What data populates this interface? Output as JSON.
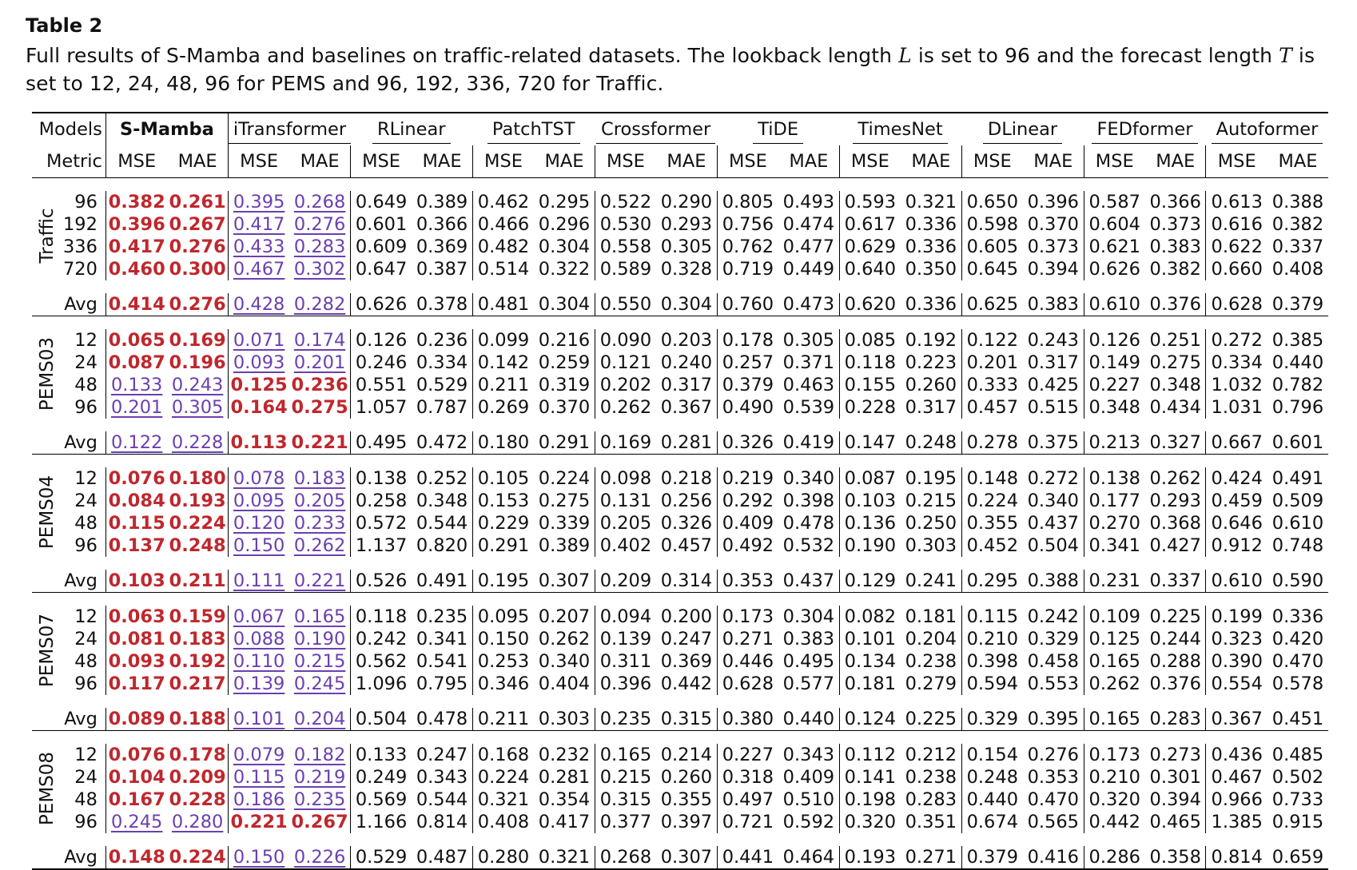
{
  "table_number": "Table 2",
  "caption": {
    "part1": "Full results of S-Mamba and baselines on traffic-related datasets. The lookback length ",
    "var_L": "L",
    "part2": " is set to 96 and the forecast length ",
    "var_T": "T",
    "part3": " is set to 12, 24, 48, 96 for PEMS and 96, 192, 336, 720 for Traffic."
  },
  "header": {
    "models_label": "Models",
    "metric_label": "Metric",
    "mse": "MSE",
    "mae": "MAE",
    "models": [
      "S-Mamba",
      "iTransformer",
      "RLinear",
      "PatchTST",
      "Crossformer",
      "TiDE",
      "TimesNet",
      "DLinear",
      "FEDformer",
      "Autoformer"
    ]
  },
  "avg_label": "Avg",
  "datasets": [
    {
      "name": "Traffic",
      "rows": [
        {
          "len": "96",
          "values": [
            "0.382",
            "0.261",
            "0.395",
            "0.268",
            "0.649",
            "0.389",
            "0.462",
            "0.295",
            "0.522",
            "0.290",
            "0.805",
            "0.493",
            "0.593",
            "0.321",
            "0.650",
            "0.396",
            "0.587",
            "0.366",
            "0.613",
            "0.388"
          ],
          "best": [
            0,
            1
          ],
          "second": [
            2,
            3
          ]
        },
        {
          "len": "192",
          "values": [
            "0.396",
            "0.267",
            "0.417",
            "0.276",
            "0.601",
            "0.366",
            "0.466",
            "0.296",
            "0.530",
            "0.293",
            "0.756",
            "0.474",
            "0.617",
            "0.336",
            "0.598",
            "0.370",
            "0.604",
            "0.373",
            "0.616",
            "0.382"
          ],
          "best": [
            0,
            1
          ],
          "second": [
            2,
            3
          ]
        },
        {
          "len": "336",
          "values": [
            "0.417",
            "0.276",
            "0.433",
            "0.283",
            "0.609",
            "0.369",
            "0.482",
            "0.304",
            "0.558",
            "0.305",
            "0.762",
            "0.477",
            "0.629",
            "0.336",
            "0.605",
            "0.373",
            "0.621",
            "0.383",
            "0.622",
            "0.337"
          ],
          "best": [
            0,
            1
          ],
          "second": [
            2,
            3
          ]
        },
        {
          "len": "720",
          "values": [
            "0.460",
            "0.300",
            "0.467",
            "0.302",
            "0.647",
            "0.387",
            "0.514",
            "0.322",
            "0.589",
            "0.328",
            "0.719",
            "0.449",
            "0.640",
            "0.350",
            "0.645",
            "0.394",
            "0.626",
            "0.382",
            "0.660",
            "0.408"
          ],
          "best": [
            0,
            1
          ],
          "second": [
            2,
            3
          ]
        }
      ],
      "avg": {
        "values": [
          "0.414",
          "0.276",
          "0.428",
          "0.282",
          "0.626",
          "0.378",
          "0.481",
          "0.304",
          "0.550",
          "0.304",
          "0.760",
          "0.473",
          "0.620",
          "0.336",
          "0.625",
          "0.383",
          "0.610",
          "0.376",
          "0.628",
          "0.379"
        ],
        "best": [
          0,
          1
        ],
        "second": [
          2,
          3
        ]
      }
    },
    {
      "name": "PEMS03",
      "rows": [
        {
          "len": "12",
          "values": [
            "0.065",
            "0.169",
            "0.071",
            "0.174",
            "0.126",
            "0.236",
            "0.099",
            "0.216",
            "0.090",
            "0.203",
            "0.178",
            "0.305",
            "0.085",
            "0.192",
            "0.122",
            "0.243",
            "0.126",
            "0.251",
            "0.272",
            "0.385"
          ],
          "best": [
            0,
            1
          ],
          "second": [
            2,
            3
          ]
        },
        {
          "len": "24",
          "values": [
            "0.087",
            "0.196",
            "0.093",
            "0.201",
            "0.246",
            "0.334",
            "0.142",
            "0.259",
            "0.121",
            "0.240",
            "0.257",
            "0.371",
            "0.118",
            "0.223",
            "0.201",
            "0.317",
            "0.149",
            "0.275",
            "0.334",
            "0.440"
          ],
          "best": [
            0,
            1
          ],
          "second": [
            2,
            3
          ]
        },
        {
          "len": "48",
          "values": [
            "0.133",
            "0.243",
            "0.125",
            "0.236",
            "0.551",
            "0.529",
            "0.211",
            "0.319",
            "0.202",
            "0.317",
            "0.379",
            "0.463",
            "0.155",
            "0.260",
            "0.333",
            "0.425",
            "0.227",
            "0.348",
            "1.032",
            "0.782"
          ],
          "best": [
            2,
            3
          ],
          "second": [
            0,
            1
          ]
        },
        {
          "len": "96",
          "values": [
            "0.201",
            "0.305",
            "0.164",
            "0.275",
            "1.057",
            "0.787",
            "0.269",
            "0.370",
            "0.262",
            "0.367",
            "0.490",
            "0.539",
            "0.228",
            "0.317",
            "0.457",
            "0.515",
            "0.348",
            "0.434",
            "1.031",
            "0.796"
          ],
          "best": [
            2,
            3
          ],
          "second": [
            0,
            1
          ]
        }
      ],
      "avg": {
        "values": [
          "0.122",
          "0.228",
          "0.113",
          "0.221",
          "0.495",
          "0.472",
          "0.180",
          "0.291",
          "0.169",
          "0.281",
          "0.326",
          "0.419",
          "0.147",
          "0.248",
          "0.278",
          "0.375",
          "0.213",
          "0.327",
          "0.667",
          "0.601"
        ],
        "best": [
          2,
          3
        ],
        "second": [
          0,
          1
        ]
      }
    },
    {
      "name": "PEMS04",
      "rows": [
        {
          "len": "12",
          "values": [
            "0.076",
            "0.180",
            "0.078",
            "0.183",
            "0.138",
            "0.252",
            "0.105",
            "0.224",
            "0.098",
            "0.218",
            "0.219",
            "0.340",
            "0.087",
            "0.195",
            "0.148",
            "0.272",
            "0.138",
            "0.262",
            "0.424",
            "0.491"
          ],
          "best": [
            0,
            1
          ],
          "second": [
            2,
            3
          ]
        },
        {
          "len": "24",
          "values": [
            "0.084",
            "0.193",
            "0.095",
            "0.205",
            "0.258",
            "0.348",
            "0.153",
            "0.275",
            "0.131",
            "0.256",
            "0.292",
            "0.398",
            "0.103",
            "0.215",
            "0.224",
            "0.340",
            "0.177",
            "0.293",
            "0.459",
            "0.509"
          ],
          "best": [
            0,
            1
          ],
          "second": [
            2,
            3
          ]
        },
        {
          "len": "48",
          "values": [
            "0.115",
            "0.224",
            "0.120",
            "0.233",
            "0.572",
            "0.544",
            "0.229",
            "0.339",
            "0.205",
            "0.326",
            "0.409",
            "0.478",
            "0.136",
            "0.250",
            "0.355",
            "0.437",
            "0.270",
            "0.368",
            "0.646",
            "0.610"
          ],
          "best": [
            0,
            1
          ],
          "second": [
            2,
            3
          ]
        },
        {
          "len": "96",
          "values": [
            "0.137",
            "0.248",
            "0.150",
            "0.262",
            "1.137",
            "0.820",
            "0.291",
            "0.389",
            "0.402",
            "0.457",
            "0.492",
            "0.532",
            "0.190",
            "0.303",
            "0.452",
            "0.504",
            "0.341",
            "0.427",
            "0.912",
            "0.748"
          ],
          "best": [
            0,
            1
          ],
          "second": [
            2,
            3
          ]
        }
      ],
      "avg": {
        "values": [
          "0.103",
          "0.211",
          "0.111",
          "0.221",
          "0.526",
          "0.491",
          "0.195",
          "0.307",
          "0.209",
          "0.314",
          "0.353",
          "0.437",
          "0.129",
          "0.241",
          "0.295",
          "0.388",
          "0.231",
          "0.337",
          "0.610",
          "0.590"
        ],
        "best": [
          0,
          1
        ],
        "second": [
          2,
          3
        ]
      }
    },
    {
      "name": "PEMS07",
      "rows": [
        {
          "len": "12",
          "values": [
            "0.063",
            "0.159",
            "0.067",
            "0.165",
            "0.118",
            "0.235",
            "0.095",
            "0.207",
            "0.094",
            "0.200",
            "0.173",
            "0.304",
            "0.082",
            "0.181",
            "0.115",
            "0.242",
            "0.109",
            "0.225",
            "0.199",
            "0.336"
          ],
          "best": [
            0,
            1
          ],
          "second": [
            2,
            3
          ]
        },
        {
          "len": "24",
          "values": [
            "0.081",
            "0.183",
            "0.088",
            "0.190",
            "0.242",
            "0.341",
            "0.150",
            "0.262",
            "0.139",
            "0.247",
            "0.271",
            "0.383",
            "0.101",
            "0.204",
            "0.210",
            "0.329",
            "0.125",
            "0.244",
            "0.323",
            "0.420"
          ],
          "best": [
            0,
            1
          ],
          "second": [
            2,
            3
          ]
        },
        {
          "len": "48",
          "values": [
            "0.093",
            "0.192",
            "0.110",
            "0.215",
            "0.562",
            "0.541",
            "0.253",
            "0.340",
            "0.311",
            "0.369",
            "0.446",
            "0.495",
            "0.134",
            "0.238",
            "0.398",
            "0.458",
            "0.165",
            "0.288",
            "0.390",
            "0.470"
          ],
          "best": [
            0,
            1
          ],
          "second": [
            2,
            3
          ]
        },
        {
          "len": "96",
          "values": [
            "0.117",
            "0.217",
            "0.139",
            "0.245",
            "1.096",
            "0.795",
            "0.346",
            "0.404",
            "0.396",
            "0.442",
            "0.628",
            "0.577",
            "0.181",
            "0.279",
            "0.594",
            "0.553",
            "0.262",
            "0.376",
            "0.554",
            "0.578"
          ],
          "best": [
            0,
            1
          ],
          "second": [
            2,
            3
          ]
        }
      ],
      "avg": {
        "values": [
          "0.089",
          "0.188",
          "0.101",
          "0.204",
          "0.504",
          "0.478",
          "0.211",
          "0.303",
          "0.235",
          "0.315",
          "0.380",
          "0.440",
          "0.124",
          "0.225",
          "0.329",
          "0.395",
          "0.165",
          "0.283",
          "0.367",
          "0.451"
        ],
        "best": [
          0,
          1
        ],
        "second": [
          2,
          3
        ]
      }
    },
    {
      "name": "PEMS08",
      "rows": [
        {
          "len": "12",
          "values": [
            "0.076",
            "0.178",
            "0.079",
            "0.182",
            "0.133",
            "0.247",
            "0.168",
            "0.232",
            "0.165",
            "0.214",
            "0.227",
            "0.343",
            "0.112",
            "0.212",
            "0.154",
            "0.276",
            "0.173",
            "0.273",
            "0.436",
            "0.485"
          ],
          "best": [
            0,
            1
          ],
          "second": [
            2,
            3
          ]
        },
        {
          "len": "24",
          "values": [
            "0.104",
            "0.209",
            "0.115",
            "0.219",
            "0.249",
            "0.343",
            "0.224",
            "0.281",
            "0.215",
            "0.260",
            "0.318",
            "0.409",
            "0.141",
            "0.238",
            "0.248",
            "0.353",
            "0.210",
            "0.301",
            "0.467",
            "0.502"
          ],
          "best": [
            0,
            1
          ],
          "second": [
            2,
            3
          ]
        },
        {
          "len": "48",
          "values": [
            "0.167",
            "0.228",
            "0.186",
            "0.235",
            "0.569",
            "0.544",
            "0.321",
            "0.354",
            "0.315",
            "0.355",
            "0.497",
            "0.510",
            "0.198",
            "0.283",
            "0.440",
            "0.470",
            "0.320",
            "0.394",
            "0.966",
            "0.733"
          ],
          "best": [
            0,
            1
          ],
          "second": [
            2,
            3
          ]
        },
        {
          "len": "96",
          "values": [
            "0.245",
            "0.280",
            "0.221",
            "0.267",
            "1.166",
            "0.814",
            "0.408",
            "0.417",
            "0.377",
            "0.397",
            "0.721",
            "0.592",
            "0.320",
            "0.351",
            "0.674",
            "0.565",
            "0.442",
            "0.465",
            "1.385",
            "0.915"
          ],
          "best": [
            2,
            3
          ],
          "second": [
            0,
            1
          ]
        }
      ],
      "avg": {
        "values": [
          "0.148",
          "0.224",
          "0.150",
          "0.226",
          "0.529",
          "0.487",
          "0.280",
          "0.321",
          "0.268",
          "0.307",
          "0.441",
          "0.464",
          "0.193",
          "0.271",
          "0.379",
          "0.416",
          "0.286",
          "0.358",
          "0.814",
          "0.659"
        ],
        "best": [
          0,
          1
        ],
        "second": [
          2,
          3
        ]
      }
    }
  ],
  "colors": {
    "best": "#c0272d",
    "second": "#6b3fb0"
  }
}
